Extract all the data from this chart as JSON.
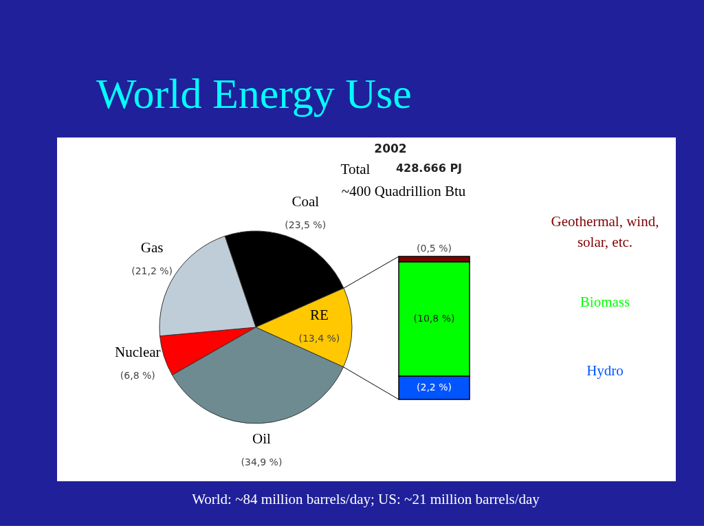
{
  "chart_data": [
    {
      "type": "pie",
      "title": "World Energy Use",
      "categories": [
        "Coal",
        "RE",
        "Oil",
        "Nuclear",
        "Gas"
      ],
      "values": [
        23.5,
        13.4,
        34.9,
        6.8,
        21.2
      ],
      "colors": [
        "#000000",
        "#ffc800",
        "#6e8b92",
        "#ff0000",
        "#bfcdd8"
      ],
      "value_labels": [
        "(23,5 %)",
        "(13,4 %)",
        "(34,9 %)",
        "(6,8 %)",
        "(21,2 %)"
      ],
      "annotations": [
        "2002",
        "Total",
        "428.666 PJ",
        "~400 Quadrillion Btu",
        "World: ~84 million barrels/day; US: ~21 million barrels/day"
      ]
    },
    {
      "type": "bar",
      "categories": [
        null
      ],
      "stacked": true,
      "tick_labels": false,
      "series": [
        {
          "name": "Hydro",
          "color": "#0055ff",
          "values": [
            2.2
          ],
          "value_labels": [
            "(2,2 %)"
          ]
        },
        {
          "name": "Biomass",
          "color": "#00ff00",
          "values": [
            10.8
          ],
          "value_labels": [
            "(10,8 %)"
          ]
        },
        {
          "name": "Geothermal, wind, solar, etc.",
          "color": "#800000",
          "values": [
            0.5
          ],
          "value_labels": [
            "(0,5 %)"
          ]
        }
      ]
    }
  ]
}
